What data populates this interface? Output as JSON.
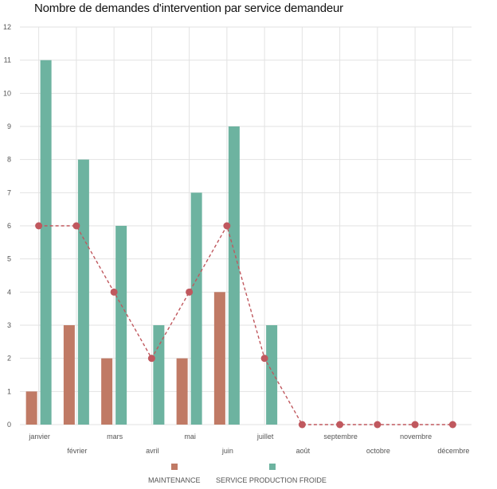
{
  "chart_data": {
    "type": "bar",
    "title": "Nombre de demandes d'intervention par service demandeur",
    "categories": [
      "janvier",
      "février",
      "mars",
      "avril",
      "mai",
      "juin",
      "juillet",
      "août",
      "septembre",
      "octobre",
      "novembre",
      "décembre"
    ],
    "series": [
      {
        "name": "MAINTENANCE",
        "type": "bar",
        "color": "#c07a65",
        "values": [
          1,
          3,
          2,
          0,
          2,
          4,
          0,
          0,
          0,
          0,
          0,
          0
        ]
      },
      {
        "name": "SERVICE PRODUCTION FROIDE",
        "type": "bar",
        "color": "#6db3a0",
        "values": [
          11,
          8,
          6,
          3,
          7,
          9,
          3,
          0,
          0,
          0,
          0,
          0
        ]
      },
      {
        "type": "line",
        "style": "dashed",
        "marker": "circle",
        "color": "#c0585e",
        "values": [
          6,
          6,
          4,
          2,
          4,
          6,
          2,
          0,
          0,
          0,
          0,
          0
        ]
      }
    ],
    "yticks": [
      "0",
      "1",
      "2",
      "3",
      "4",
      "5",
      "6",
      "7",
      "8",
      "9",
      "10",
      "11",
      "12"
    ],
    "ylim": [
      0,
      12
    ],
    "grid": true,
    "legend_position": "bottom"
  }
}
